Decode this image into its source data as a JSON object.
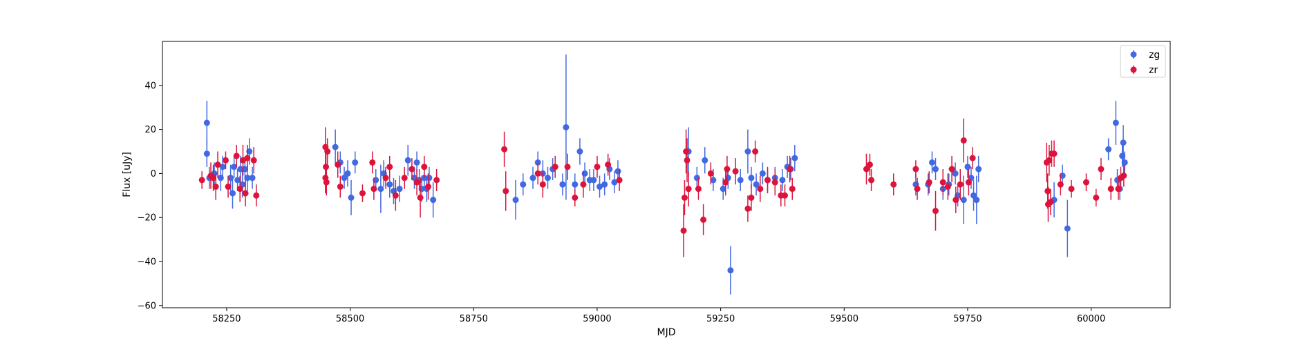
{
  "chart_data": {
    "type": "scatter",
    "title": "",
    "xlabel": "MJD",
    "ylabel": "Flux [uJy]",
    "xlim": [
      58120,
      60160
    ],
    "ylim": [
      -61,
      60
    ],
    "xticks": [
      58250,
      58500,
      58750,
      59000,
      59250,
      59500,
      59750,
      60000
    ],
    "yticks": [
      -60,
      -40,
      -20,
      0,
      20,
      40
    ],
    "grid": false,
    "legend_position": "top-right",
    "error_bars": true,
    "series": [
      {
        "name": "zg",
        "color": "#4169e1",
        "points": [
          [
            58210,
            23,
            10
          ],
          [
            58210,
            9,
            6
          ],
          [
            58215,
            -2,
            5
          ],
          [
            58225,
            0,
            5
          ],
          [
            58238,
            -2,
            6
          ],
          [
            58242,
            3,
            5
          ],
          [
            58258,
            -2,
            6
          ],
          [
            58262,
            -9,
            7
          ],
          [
            58265,
            3,
            5
          ],
          [
            58272,
            -3,
            5
          ],
          [
            58278,
            2,
            6
          ],
          [
            58282,
            -5,
            6
          ],
          [
            58287,
            2,
            5
          ],
          [
            58292,
            -2,
            6
          ],
          [
            58296,
            10,
            6
          ],
          [
            58302,
            -2,
            5
          ],
          [
            58470,
            12,
            8
          ],
          [
            58480,
            5,
            5
          ],
          [
            58488,
            -2,
            5
          ],
          [
            58495,
            0,
            6
          ],
          [
            58502,
            -11,
            8
          ],
          [
            58510,
            5,
            5
          ],
          [
            58552,
            -3,
            5
          ],
          [
            58562,
            -7,
            11
          ],
          [
            58568,
            0,
            6
          ],
          [
            58580,
            -5,
            6
          ],
          [
            58588,
            -8,
            6
          ],
          [
            58600,
            -7,
            6
          ],
          [
            58617,
            6,
            7
          ],
          [
            58630,
            -2,
            5
          ],
          [
            58635,
            5,
            5
          ],
          [
            58640,
            -3,
            5
          ],
          [
            58645,
            -7,
            6
          ],
          [
            58650,
            -2,
            5
          ],
          [
            58655,
            -7,
            6
          ],
          [
            58660,
            -2,
            5
          ],
          [
            58668,
            -12,
            8
          ],
          [
            58835,
            -12,
            9
          ],
          [
            58850,
            -5,
            5
          ],
          [
            58870,
            -2,
            5
          ],
          [
            58880,
            5,
            5
          ],
          [
            58890,
            0,
            6
          ],
          [
            58900,
            -2,
            5
          ],
          [
            58910,
            2,
            5
          ],
          [
            58930,
            -5,
            5
          ],
          [
            58937,
            21,
            33
          ],
          [
            58955,
            -5,
            5
          ],
          [
            58965,
            10,
            6
          ],
          [
            58975,
            0,
            5
          ],
          [
            58985,
            -3,
            5
          ],
          [
            58993,
            -3,
            5
          ],
          [
            59005,
            -6,
            5
          ],
          [
            59015,
            -5,
            5
          ],
          [
            59025,
            2,
            5
          ],
          [
            59035,
            -4,
            5
          ],
          [
            59042,
            1,
            5
          ],
          [
            59185,
            10,
            11
          ],
          [
            59202,
            -2,
            5
          ],
          [
            59218,
            6,
            6
          ],
          [
            59235,
            -3,
            5
          ],
          [
            59255,
            -7,
            5
          ],
          [
            59265,
            -2,
            5
          ],
          [
            59270,
            -44,
            11
          ],
          [
            59290,
            -3,
            5
          ],
          [
            59305,
            10,
            10
          ],
          [
            59312,
            -2,
            5
          ],
          [
            59322,
            -5,
            5
          ],
          [
            59335,
            0,
            5
          ],
          [
            59345,
            -3,
            5
          ],
          [
            59360,
            -2,
            5
          ],
          [
            59375,
            -3,
            5
          ],
          [
            59385,
            3,
            5
          ],
          [
            59392,
            2,
            5
          ],
          [
            59400,
            7,
            6
          ],
          [
            59645,
            -5,
            5
          ],
          [
            59670,
            -5,
            5
          ],
          [
            59678,
            5,
            5
          ],
          [
            59685,
            2,
            5
          ],
          [
            59700,
            -7,
            5
          ],
          [
            59712,
            -5,
            5
          ],
          [
            59725,
            0,
            5
          ],
          [
            59730,
            -10,
            5
          ],
          [
            59742,
            -12,
            11
          ],
          [
            59750,
            3,
            5
          ],
          [
            59757,
            -2,
            5
          ],
          [
            59762,
            -10,
            7
          ],
          [
            59768,
            -12,
            11
          ],
          [
            59772,
            2,
            6
          ],
          [
            59925,
            -12,
            8
          ],
          [
            59942,
            -1,
            5
          ],
          [
            59952,
            -25,
            13
          ],
          [
            60035,
            11,
            5
          ],
          [
            60050,
            23,
            10
          ],
          [
            60053,
            -3,
            5
          ],
          [
            60058,
            -7,
            5
          ],
          [
            60063,
            8,
            5
          ],
          [
            60065,
            14,
            8
          ],
          [
            60068,
            5,
            5
          ]
        ]
      },
      {
        "name": "zr",
        "color": "#dc143c",
        "points": [
          [
            58200,
            -3,
            4
          ],
          [
            58218,
            -1,
            6
          ],
          [
            58223,
            -2,
            6
          ],
          [
            58228,
            -6,
            6
          ],
          [
            58232,
            4,
            6
          ],
          [
            58248,
            6,
            4
          ],
          [
            58253,
            -6,
            5
          ],
          [
            58270,
            8,
            5
          ],
          [
            58277,
            -7,
            6
          ],
          [
            58283,
            6,
            7
          ],
          [
            58288,
            -9,
            6
          ],
          [
            58292,
            7,
            6
          ],
          [
            58305,
            6,
            6
          ],
          [
            58310,
            -10,
            5
          ],
          [
            58450,
            12,
            9
          ],
          [
            58450,
            -2,
            7
          ],
          [
            58451,
            3,
            6
          ],
          [
            58452,
            -4,
            6
          ],
          [
            58454,
            10,
            6
          ],
          [
            58475,
            4,
            6
          ],
          [
            58480,
            -6,
            5
          ],
          [
            58525,
            -9,
            4
          ],
          [
            58545,
            5,
            5
          ],
          [
            58548,
            -7,
            5
          ],
          [
            58572,
            -2,
            5
          ],
          [
            58580,
            3,
            5
          ],
          [
            58592,
            -10,
            7
          ],
          [
            58610,
            -2,
            5
          ],
          [
            58625,
            2,
            5
          ],
          [
            58635,
            -4,
            6
          ],
          [
            58642,
            -11,
            9
          ],
          [
            58650,
            3,
            5
          ],
          [
            58658,
            -6,
            6
          ],
          [
            58675,
            -3,
            5
          ],
          [
            58812,
            11,
            8
          ],
          [
            58815,
            -8,
            9
          ],
          [
            58880,
            0,
            5
          ],
          [
            58890,
            -5,
            6
          ],
          [
            58915,
            3,
            5
          ],
          [
            58940,
            3,
            6
          ],
          [
            58955,
            -11,
            4
          ],
          [
            58972,
            -5,
            6
          ],
          [
            59000,
            3,
            5
          ],
          [
            59022,
            4,
            5
          ],
          [
            59045,
            -3,
            5
          ],
          [
            59175,
            -26,
            12
          ],
          [
            59177,
            -11,
            8
          ],
          [
            59180,
            10,
            10
          ],
          [
            59182,
            6,
            10
          ],
          [
            59185,
            -7,
            8
          ],
          [
            59205,
            -7,
            5
          ],
          [
            59215,
            -21,
            7
          ],
          [
            59230,
            0,
            5
          ],
          [
            59260,
            -4,
            6
          ],
          [
            59263,
            2,
            6
          ],
          [
            59280,
            1,
            6
          ],
          [
            59305,
            -16,
            6
          ],
          [
            59312,
            -11,
            6
          ],
          [
            59320,
            10,
            5
          ],
          [
            59330,
            -7,
            6
          ],
          [
            59345,
            -3,
            6
          ],
          [
            59360,
            -4,
            6
          ],
          [
            59372,
            -10,
            5
          ],
          [
            59380,
            -10,
            5
          ],
          [
            59390,
            2,
            6
          ],
          [
            59395,
            -7,
            5
          ],
          [
            59545,
            2,
            7
          ],
          [
            59552,
            4,
            5
          ],
          [
            59555,
            -3,
            5
          ],
          [
            59600,
            -5,
            5
          ],
          [
            59645,
            2,
            4
          ],
          [
            59648,
            -7,
            5
          ],
          [
            59672,
            -4,
            5
          ],
          [
            59685,
            -17,
            9
          ],
          [
            59700,
            -4,
            6
          ],
          [
            59710,
            -6,
            6
          ],
          [
            59718,
            2,
            6
          ],
          [
            59726,
            -12,
            6
          ],
          [
            59735,
            -5,
            7
          ],
          [
            59742,
            15,
            10
          ],
          [
            59752,
            -4,
            6
          ],
          [
            59760,
            7,
            5
          ],
          [
            59910,
            5,
            9
          ],
          [
            59912,
            -8,
            8
          ],
          [
            59913,
            -14,
            8
          ],
          [
            59915,
            6,
            7
          ],
          [
            59918,
            -13,
            6
          ],
          [
            59920,
            9,
            6
          ],
          [
            59925,
            9,
            6
          ],
          [
            59938,
            -5,
            5
          ],
          [
            59960,
            -7,
            4
          ],
          [
            59990,
            -4,
            4
          ],
          [
            60010,
            -11,
            4
          ],
          [
            60020,
            2,
            5
          ],
          [
            60040,
            -7,
            5
          ],
          [
            60055,
            -7,
            5
          ],
          [
            60060,
            -2,
            5
          ],
          [
            60066,
            -1,
            5
          ]
        ]
      }
    ]
  }
}
